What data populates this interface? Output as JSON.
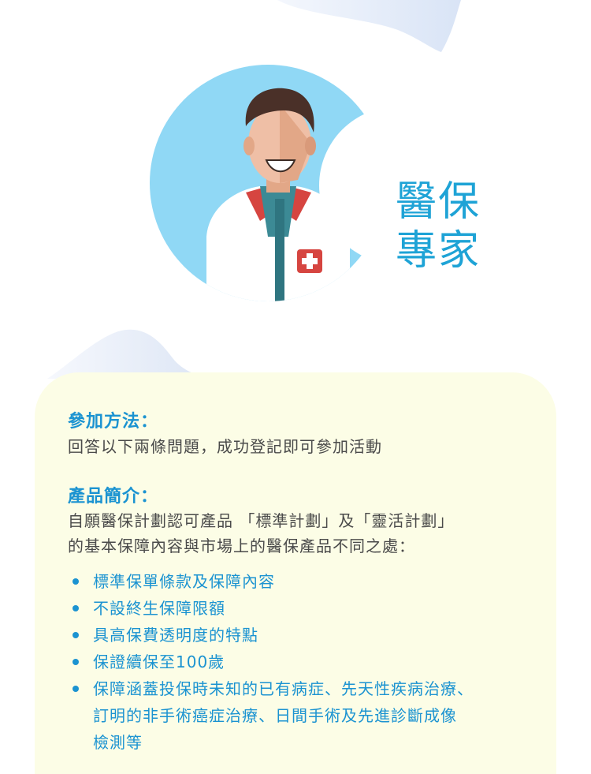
{
  "title": {
    "line1": "醫保",
    "line2": "專家"
  },
  "colors": {
    "accent": "#1b93d1",
    "circle": "#90d8f5",
    "card": "#fcfde6",
    "text": "#4a4a4a"
  },
  "icons": {
    "doctor": "doctor-illustration",
    "badge": "red-cross-icon"
  },
  "method": {
    "heading": "參加方法：",
    "text": "回答以下兩條問題，成功登記即可參加活動"
  },
  "product": {
    "heading": "產品簡介：",
    "line1": "自願醫保計劃認可產品 「標準計劃」及「靈活計劃」",
    "line2": "的基本保障內容與市場上的醫保產品不同之處："
  },
  "features": [
    {
      "text": "標準保單條款及保障內容"
    },
    {
      "text": "不設終生保障限額"
    },
    {
      "text": "具高保費透明度的特點"
    },
    {
      "text": "保證續保至100歲"
    },
    {
      "line1": "保障涵蓋投保時未知的已有病症、先天性疾病治療、",
      "line2": "訂明的非手術癌症治療、日間手術及先進診斷成像",
      "line3": "檢測等"
    }
  ]
}
